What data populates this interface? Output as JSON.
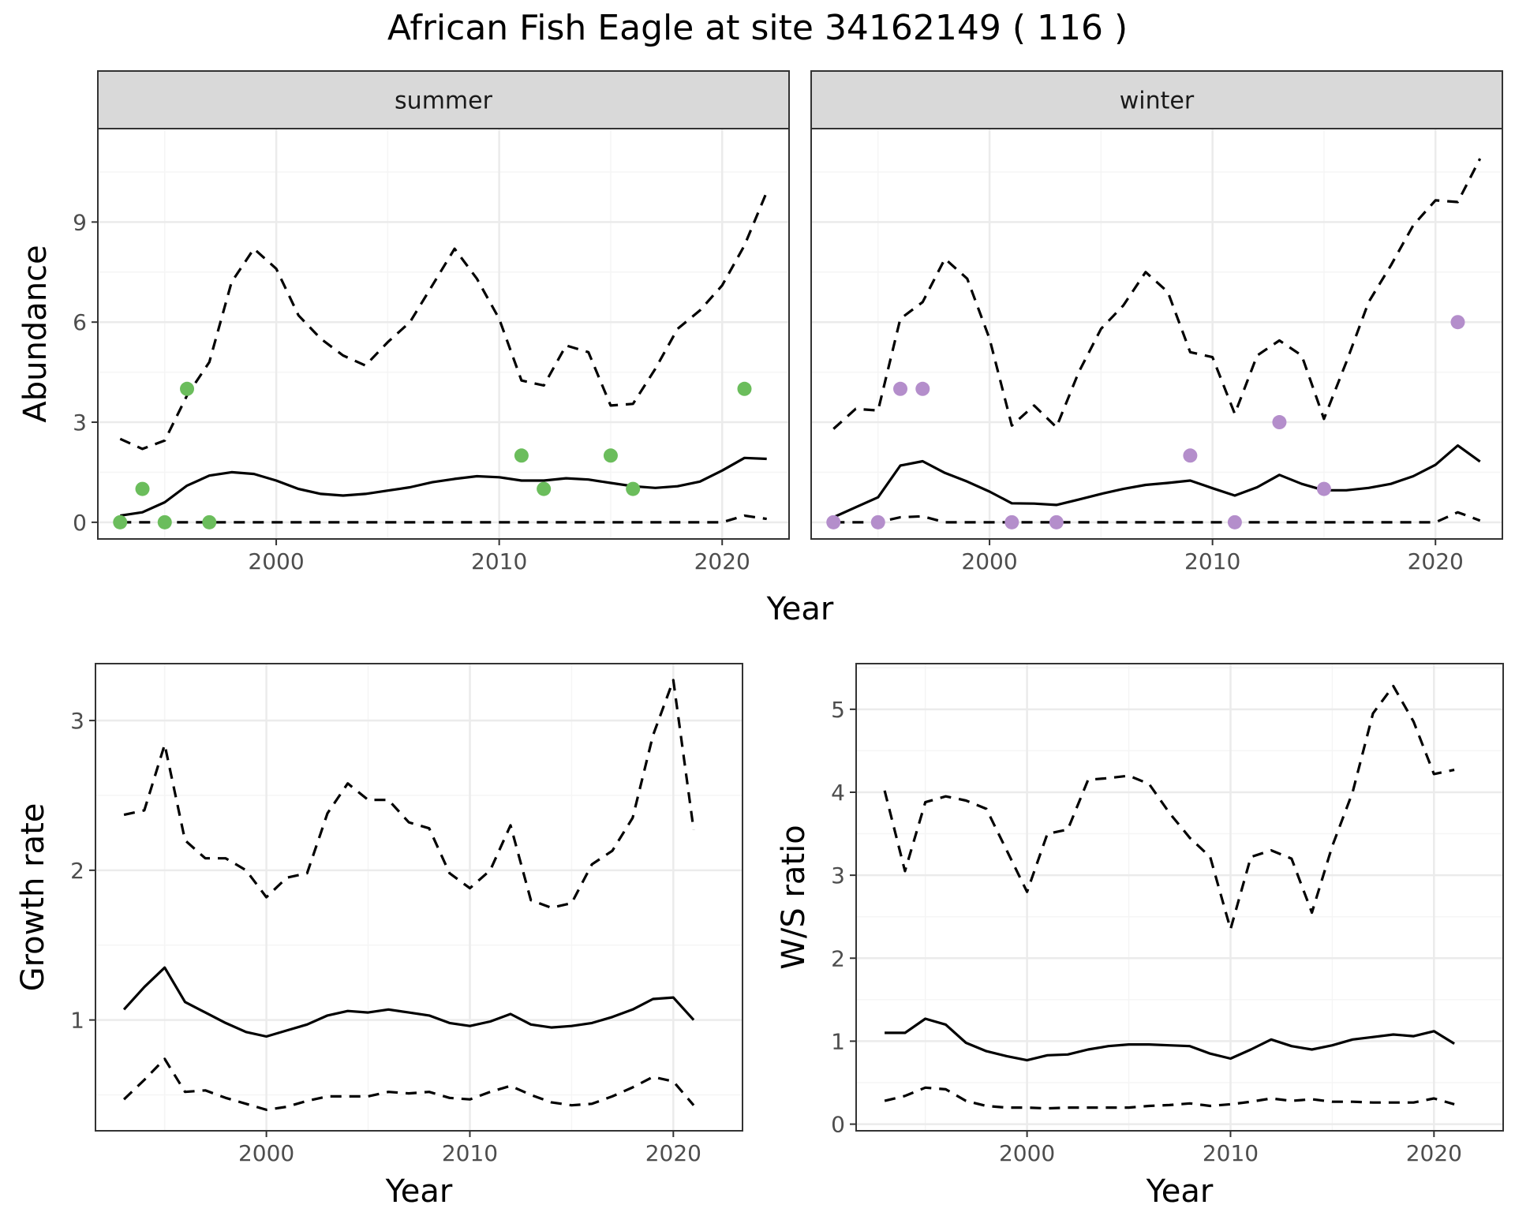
{
  "title": "African Fish Eagle at site 34162149 ( 116 )",
  "colors": {
    "summer_points": "#6bbd5c",
    "winter_points": "#b48ecb",
    "lines": "#000000",
    "grid_major": "#ebebeb",
    "grid_minor": "#f5f5f5",
    "strip_fill": "#d9d9d9",
    "panel_border": "#333333"
  },
  "chart_data": [
    {
      "type": "line",
      "facet": "summer",
      "xlabel": "Year",
      "ylabel": "Abundance",
      "xlim": [
        1992,
        2023
      ],
      "ylim": [
        -0.5,
        11.8
      ],
      "xticks": [
        2000,
        2010,
        2020
      ],
      "yticks": [
        0,
        3,
        6,
        9
      ],
      "grid": true,
      "x": [
        1993,
        1994,
        1995,
        1996,
        1997,
        1998,
        1999,
        2000,
        2001,
        2002,
        2003,
        2004,
        2005,
        2006,
        2007,
        2008,
        2009,
        2010,
        2011,
        2012,
        2013,
        2014,
        2015,
        2016,
        2017,
        2018,
        2019,
        2020,
        2021,
        2022
      ],
      "series": [
        {
          "role": "estimate",
          "style": "solid",
          "values": [
            0.2,
            0.3,
            0.6,
            1.1,
            1.4,
            1.5,
            1.45,
            1.25,
            1.0,
            0.85,
            0.8,
            0.85,
            0.95,
            1.05,
            1.2,
            1.3,
            1.38,
            1.35,
            1.25,
            1.25,
            1.32,
            1.28,
            1.18,
            1.08,
            1.03,
            1.08,
            1.22,
            1.55,
            1.93,
            1.9
          ]
        },
        {
          "role": "upper",
          "style": "dashed",
          "values": [
            2.5,
            2.2,
            2.45,
            3.8,
            4.8,
            7.2,
            8.2,
            7.6,
            6.2,
            5.5,
            5.0,
            4.7,
            5.4,
            6.0,
            7.1,
            8.2,
            7.3,
            6.1,
            4.25,
            4.1,
            5.3,
            5.1,
            3.5,
            3.55,
            4.6,
            5.8,
            6.35,
            7.1,
            8.3,
            9.9
          ]
        },
        {
          "role": "lower",
          "style": "dashed",
          "values": [
            0,
            0,
            0,
            0,
            0,
            0,
            0,
            0,
            0,
            0,
            0,
            0,
            0,
            0,
            0,
            0,
            0,
            0,
            0,
            0,
            0,
            0,
            0,
            0,
            0,
            0,
            0,
            0,
            0.2,
            0.1
          ]
        }
      ],
      "points": {
        "x": [
          1993,
          1994,
          1995,
          1996,
          1997,
          2011,
          2012,
          2015,
          2016,
          2021
        ],
        "y": [
          0,
          1,
          0,
          4,
          0,
          2,
          1,
          2,
          1,
          4
        ]
      }
    },
    {
      "type": "line",
      "facet": "winter",
      "xlabel": "Year",
      "ylabel": "Abundance",
      "xlim": [
        1992,
        2023
      ],
      "ylim": [
        -0.5,
        11.8
      ],
      "xticks": [
        2000,
        2010,
        2020
      ],
      "yticks": [
        0,
        3,
        6,
        9
      ],
      "grid": true,
      "x": [
        1993,
        1994,
        1995,
        1996,
        1997,
        1998,
        1999,
        2000,
        2001,
        2002,
        2003,
        2004,
        2005,
        2006,
        2007,
        2008,
        2009,
        2010,
        2011,
        2012,
        2013,
        2014,
        2015,
        2016,
        2017,
        2018,
        2019,
        2020,
        2021,
        2022
      ],
      "series": [
        {
          "role": "estimate",
          "style": "solid",
          "values": [
            0.15,
            0.45,
            0.75,
            1.7,
            1.83,
            1.48,
            1.22,
            0.92,
            0.57,
            0.56,
            0.52,
            0.68,
            0.85,
            1.0,
            1.12,
            1.18,
            1.25,
            1.02,
            0.8,
            1.05,
            1.42,
            1.15,
            0.96,
            0.96,
            1.03,
            1.15,
            1.38,
            1.72,
            2.3,
            1.82
          ]
        },
        {
          "role": "upper",
          "style": "dashed",
          "values": [
            2.8,
            3.4,
            3.35,
            6.1,
            6.6,
            7.9,
            7.3,
            5.5,
            2.9,
            3.5,
            2.85,
            4.5,
            5.8,
            6.5,
            7.5,
            6.9,
            5.1,
            4.95,
            3.25,
            5.0,
            5.45,
            5.0,
            3.1,
            4.8,
            6.6,
            7.7,
            8.9,
            9.65,
            9.6,
            10.9
          ]
        },
        {
          "role": "lower",
          "style": "dashed",
          "values": [
            0,
            0,
            0,
            0.15,
            0.18,
            0,
            0,
            0,
            0,
            0,
            0,
            0,
            0,
            0,
            0,
            0,
            0,
            0,
            0,
            0,
            0,
            0,
            0,
            0,
            0,
            0,
            0,
            0,
            0.3,
            0.05
          ]
        }
      ],
      "points": {
        "x": [
          1993,
          1995,
          1996,
          1997,
          2001,
          2003,
          2009,
          2011,
          2013,
          2015,
          2021
        ],
        "y": [
          0,
          0,
          4,
          4,
          0,
          0,
          2,
          0,
          3,
          1,
          6
        ]
      }
    },
    {
      "type": "line",
      "xlabel": "Year",
      "ylabel": "Growth rate",
      "xlim": [
        1991.6,
        2023.4
      ],
      "ylim": [
        0.26,
        3.38
      ],
      "xticks": [
        2000,
        2010,
        2020
      ],
      "yticks": [
        1,
        2,
        3
      ],
      "grid": true,
      "x": [
        1993,
        1994,
        1995,
        1996,
        1997,
        1998,
        1999,
        2000,
        2001,
        2002,
        2003,
        2004,
        2005,
        2006,
        2007,
        2008,
        2009,
        2010,
        2011,
        2012,
        2013,
        2014,
        2015,
        2016,
        2017,
        2018,
        2019,
        2020,
        2021
      ],
      "series": [
        {
          "role": "estimate",
          "style": "solid",
          "values": [
            1.07,
            1.22,
            1.35,
            1.12,
            1.05,
            0.98,
            0.92,
            0.89,
            0.93,
            0.97,
            1.03,
            1.06,
            1.05,
            1.07,
            1.05,
            1.03,
            0.98,
            0.96,
            0.99,
            1.04,
            0.97,
            0.95,
            0.96,
            0.98,
            1.02,
            1.07,
            1.14,
            1.15,
            1.0
          ]
        },
        {
          "role": "upper",
          "style": "dashed",
          "values": [
            2.37,
            2.4,
            2.84,
            2.2,
            2.08,
            2.08,
            2.0,
            1.82,
            1.95,
            1.98,
            2.38,
            2.58,
            2.47,
            2.47,
            2.32,
            2.28,
            1.98,
            1.88,
            2.0,
            2.3,
            1.8,
            1.75,
            1.78,
            2.04,
            2.13,
            2.35,
            2.9,
            3.27,
            2.27
          ]
        },
        {
          "role": "lower",
          "style": "dashed",
          "values": [
            0.47,
            0.6,
            0.74,
            0.52,
            0.53,
            0.48,
            0.44,
            0.4,
            0.42,
            0.46,
            0.49,
            0.49,
            0.49,
            0.52,
            0.51,
            0.52,
            0.48,
            0.47,
            0.52,
            0.56,
            0.5,
            0.45,
            0.43,
            0.44,
            0.49,
            0.55,
            0.62,
            0.59,
            0.43
          ]
        }
      ]
    },
    {
      "type": "line",
      "xlabel": "Year",
      "ylabel": "W/S ratio",
      "xlim": [
        1991.6,
        2023.4
      ],
      "ylim": [
        -0.08,
        5.55
      ],
      "xticks": [
        2000,
        2010,
        2020
      ],
      "yticks": [
        0,
        1,
        2,
        3,
        4,
        5
      ],
      "grid": true,
      "x": [
        1993,
        1994,
        1995,
        1996,
        1997,
        1998,
        1999,
        2000,
        2001,
        2002,
        2003,
        2004,
        2005,
        2006,
        2007,
        2008,
        2009,
        2010,
        2011,
        2012,
        2013,
        2014,
        2015,
        2016,
        2017,
        2018,
        2019,
        2020,
        2021
      ],
      "series": [
        {
          "role": "estimate",
          "style": "solid",
          "values": [
            1.1,
            1.1,
            1.27,
            1.2,
            0.98,
            0.88,
            0.82,
            0.77,
            0.83,
            0.84,
            0.9,
            0.94,
            0.96,
            0.96,
            0.95,
            0.94,
            0.85,
            0.79,
            0.9,
            1.02,
            0.94,
            0.9,
            0.95,
            1.02,
            1.05,
            1.08,
            1.06,
            1.12,
            0.97
          ]
        },
        {
          "role": "upper",
          "style": "dashed",
          "values": [
            4.02,
            3.05,
            3.88,
            3.95,
            3.9,
            3.8,
            3.3,
            2.8,
            3.5,
            3.55,
            4.15,
            4.17,
            4.2,
            4.1,
            3.75,
            3.45,
            3.22,
            2.35,
            3.22,
            3.3,
            3.2,
            2.55,
            3.35,
            4.0,
            4.95,
            5.28,
            4.85,
            4.22,
            4.27
          ]
        },
        {
          "role": "lower",
          "style": "dashed",
          "values": [
            0.28,
            0.34,
            0.44,
            0.42,
            0.28,
            0.22,
            0.2,
            0.2,
            0.19,
            0.2,
            0.2,
            0.2,
            0.2,
            0.22,
            0.23,
            0.25,
            0.22,
            0.24,
            0.27,
            0.31,
            0.28,
            0.3,
            0.27,
            0.27,
            0.26,
            0.26,
            0.26,
            0.31,
            0.24
          ]
        }
      ]
    }
  ]
}
